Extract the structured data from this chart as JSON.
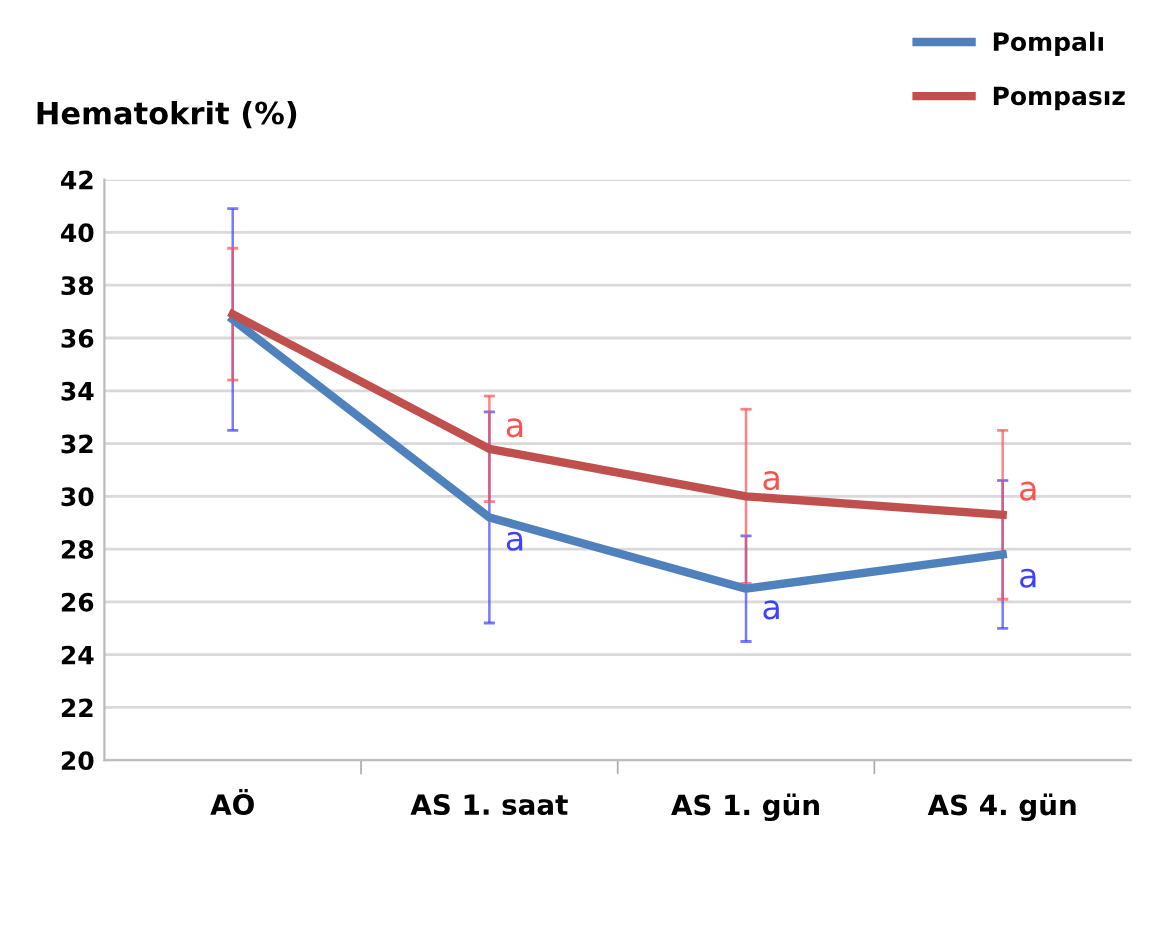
{
  "chart_data": {
    "type": "line",
    "ylabel": "Hematokrit (%)",
    "categories": [
      "AÖ",
      "AS 1. saat",
      "AS 1. gün",
      "AS 4. gün"
    ],
    "series": [
      {
        "name": "Pompalı",
        "color": "#4f81bd",
        "values": [
          36.7,
          29.2,
          26.5,
          27.8
        ],
        "errors": [
          4.2,
          4.0,
          2.0,
          2.8
        ]
      },
      {
        "name": "Pompasız",
        "color": "#c0504d",
        "values": [
          36.9,
          31.8,
          30.0,
          29.3
        ],
        "errors": [
          2.5,
          2.0,
          3.3,
          3.2
        ]
      }
    ],
    "annotations": [
      {
        "text": "a",
        "x": "AS 1. saat",
        "y": 32.6
      },
      {
        "text": "a",
        "x": "AS 1. saat",
        "y": 28.3
      },
      {
        "text": "a",
        "x": "AS 1. gün",
        "y": 30.6
      },
      {
        "text": "a",
        "x": "AS 1. gün",
        "y": 25.7
      },
      {
        "text": "a",
        "x": "AS 4. gün",
        "y": 30.2
      },
      {
        "text": "a",
        "x": "AS 4. gün",
        "y": 26.9
      }
    ],
    "ylim": [
      20,
      42
    ],
    "yticks": [
      20,
      22,
      24,
      26,
      28,
      30,
      32,
      34,
      36,
      38,
      40,
      42
    ],
    "grid": "y",
    "legend": "top right",
    "marker": "none",
    "line_style": "solid"
  }
}
